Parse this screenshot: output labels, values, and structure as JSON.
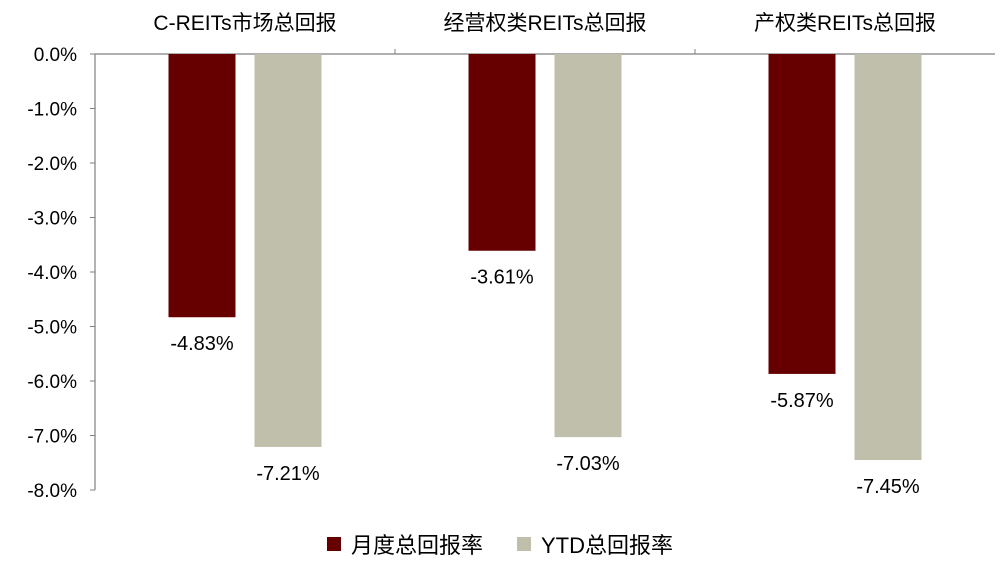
{
  "chart_data": {
    "type": "bar",
    "categories": [
      "C-REITs市场总回报",
      "经营权类REITs总回报",
      "产权类REITs总回报"
    ],
    "series": [
      {
        "name": "月度总回报率",
        "values": [
          -4.83,
          -3.61,
          -5.87
        ],
        "labels": [
          "-4.83%",
          "-3.61%",
          "-5.87%"
        ],
        "color": "#660000"
      },
      {
        "name": "YTD总回报率",
        "values": [
          -7.21,
          -7.03,
          -7.45
        ],
        "labels": [
          "-7.21%",
          "-7.03%",
          "-7.45%"
        ],
        "color": "#bfbfab"
      }
    ],
    "y_ticks": [
      "0.0%",
      "-1.0%",
      "-2.0%",
      "-3.0%",
      "-4.0%",
      "-5.0%",
      "-6.0%",
      "-7.0%",
      "-8.0%"
    ],
    "ylim": [
      -8,
      0
    ],
    "title": "",
    "xlabel": "",
    "ylabel": "",
    "grid": false,
    "legend_position": "bottom"
  }
}
